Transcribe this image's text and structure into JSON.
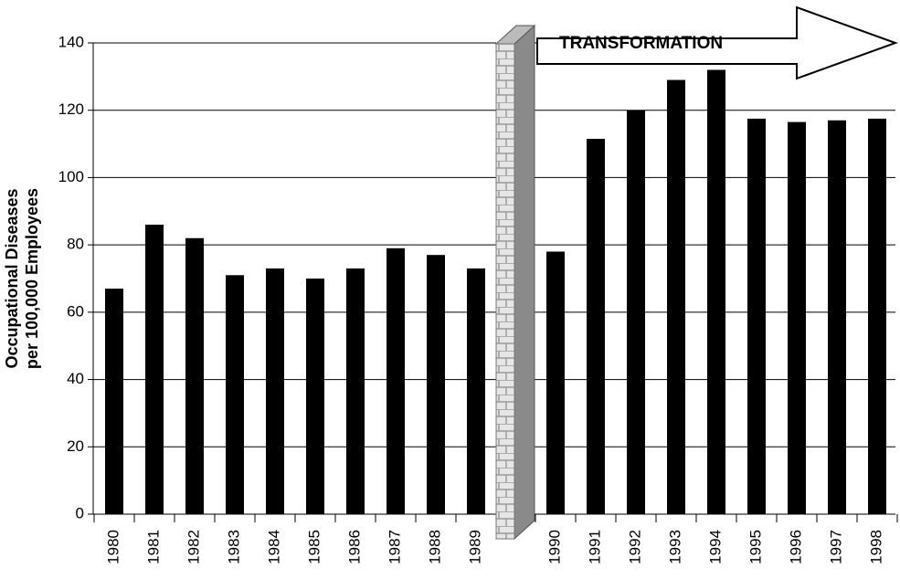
{
  "chart_data": {
    "type": "bar",
    "ylabel": [
      "Occupational Diseases",
      "per 100,000 Employees"
    ],
    "annotation": "TRANSFORMATION",
    "categories": [
      "1980",
      "1981",
      "1982",
      "1983",
      "1984",
      "1985",
      "1986",
      "1987",
      "1988",
      "1989",
      "1990",
      "1991",
      "1992",
      "1993",
      "1994",
      "1995",
      "1996",
      "1997",
      "1998"
    ],
    "values": [
      67,
      86,
      82,
      71,
      73,
      70,
      73,
      79,
      77,
      73,
      78,
      111.5,
      120,
      129,
      132,
      117.5,
      116.5,
      117,
      117.5
    ],
    "color": "#000000",
    "ylim": [
      0,
      140
    ],
    "yticks": [
      0,
      20,
      40,
      60,
      80,
      100,
      120,
      140
    ],
    "grid": true
  }
}
